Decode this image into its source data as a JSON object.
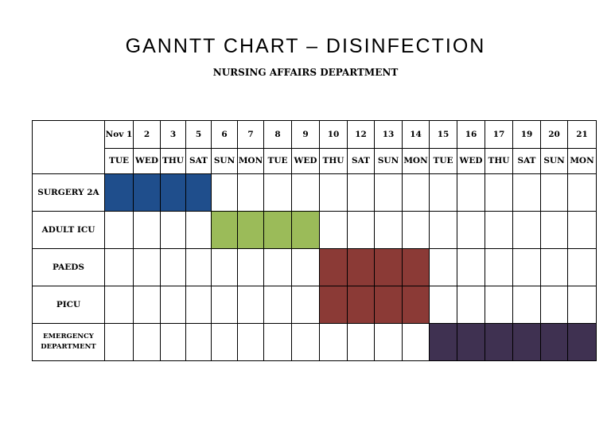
{
  "title": "GANNTT CHART – DISINFECTION",
  "subtitle": "NURSING AFFAIRS DEPARTMENT",
  "colors": {
    "surgery": "#1f4e8c",
    "adult_icu": "#9bbb59",
    "paeds": "#8b3a36",
    "picu": "#8b3a36",
    "emergency": "#3f3151"
  },
  "days": [
    "Nov 1",
    "2",
    "3",
    "5",
    "6",
    "7",
    "8",
    "9",
    "10",
    "12",
    "13",
    "14",
    "15",
    "16",
    "17",
    "19",
    "20",
    "21"
  ],
  "weekdays": [
    "TUE",
    "WED",
    "THU",
    "SAT",
    "SUN",
    "MON",
    "TUE",
    "WED",
    "THU",
    "SAT",
    "SUN",
    "MON",
    "TUE",
    "WED",
    "THU",
    "SAT",
    "SUN",
    "MON"
  ],
  "units": [
    {
      "name": "SURGERY 2A",
      "start": 0,
      "end": 3,
      "color": "#1f4e8c"
    },
    {
      "name": "ADULT ICU",
      "start": 4,
      "end": 7,
      "color": "#9bbb59"
    },
    {
      "name": "PAEDS",
      "start": 8,
      "end": 11,
      "color": "#8b3a36"
    },
    {
      "name": "PICU",
      "start": 8,
      "end": 11,
      "color": "#8b3a36"
    },
    {
      "name": "EMERGENCY DEPARTMENT",
      "start": 12,
      "end": 17,
      "color": "#3f3151"
    }
  ]
}
